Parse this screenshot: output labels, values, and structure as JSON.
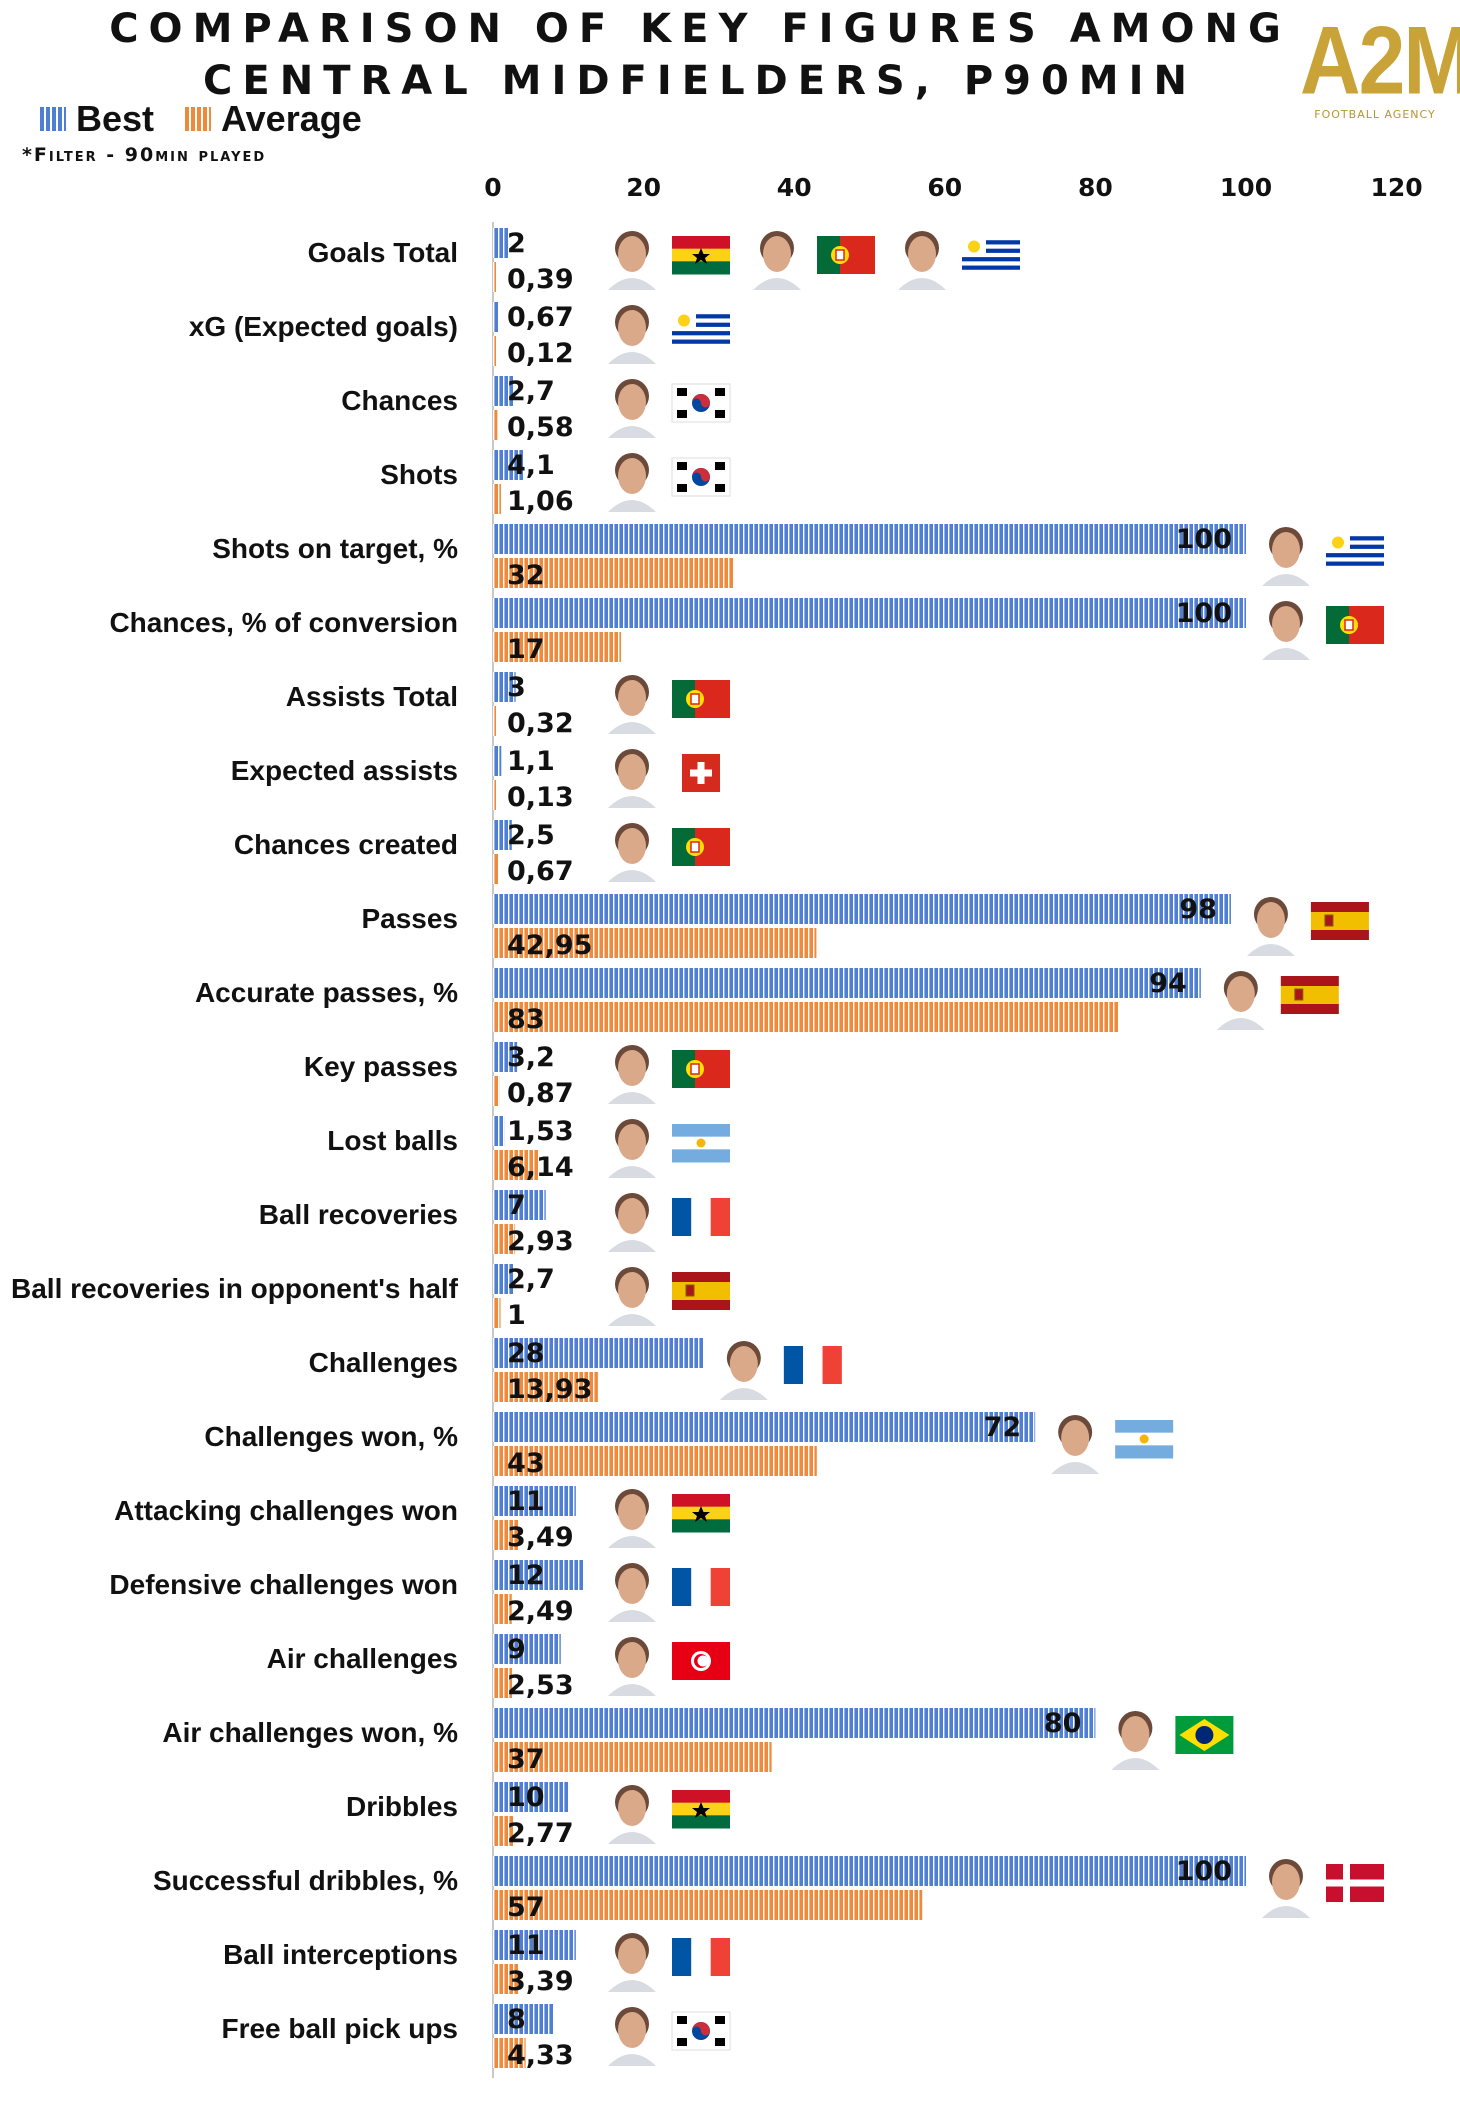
{
  "title": {
    "line1": "COMPARISON OF KEY FIGURES AMONG",
    "line2": "CENTRAL MIDFIELDERS, P90MIN"
  },
  "legend": {
    "best": "Best",
    "average": "Average"
  },
  "filter_note": "*Filter - 90min played",
  "logo": {
    "main": "A2M",
    "sub": "FOOTBALL AGENCY"
  },
  "colors": {
    "best": "#4f7fd4",
    "average": "#ef8a3c",
    "stripe": "#ffffff"
  },
  "chart_data": {
    "type": "bar",
    "orientation": "horizontal",
    "title": "Comparison of key figures among central midfielders, p90min",
    "xlim": [
      0,
      120
    ],
    "xticks": [
      "0",
      "20",
      "40",
      "60",
      "80",
      "100",
      "120"
    ],
    "series": [
      {
        "name": "Best",
        "values": [
          2,
          0.67,
          2.7,
          4.1,
          100,
          100,
          3,
          1.1,
          2.5,
          98,
          94,
          3.2,
          1.53,
          7,
          2.7,
          28,
          72,
          11,
          12,
          9,
          80,
          10,
          100,
          11,
          8
        ]
      },
      {
        "name": "Average",
        "values": [
          0.39,
          0.12,
          0.58,
          1.06,
          32,
          17,
          0.32,
          0.13,
          0.67,
          42.95,
          83,
          0.87,
          6.14,
          2.93,
          1,
          13.93,
          43,
          3.49,
          2.49,
          2.53,
          37,
          2.77,
          57,
          3.39,
          4.33
        ]
      }
    ],
    "rows": [
      {
        "label": "Goals Total",
        "best": "2",
        "avg": "0,39",
        "players": [
          {
            "flag": "ghana-flag"
          },
          {
            "flag": "portugal-flag"
          },
          {
            "flag": "uruguay-flag"
          }
        ]
      },
      {
        "label": "xG (Expected goals)",
        "best": "0,67",
        "avg": "0,12",
        "players": [
          {
            "flag": "uruguay-flag"
          }
        ]
      },
      {
        "label": "Chances",
        "best": "2,7",
        "avg": "0,58",
        "players": [
          {
            "flag": "south-korea-flag"
          }
        ]
      },
      {
        "label": "Shots",
        "best": "4,1",
        "avg": "1,06",
        "players": [
          {
            "flag": "south-korea-flag"
          }
        ]
      },
      {
        "label": "Shots on target, %",
        "best": "100",
        "avg": "32",
        "players": [
          {
            "flag": "uruguay-flag"
          }
        ]
      },
      {
        "label": "Chances, % of conversion",
        "best": "100",
        "avg": "17",
        "players": [
          {
            "flag": "portugal-flag"
          }
        ]
      },
      {
        "label": "Assists Total",
        "best": "3",
        "avg": "0,32",
        "players": [
          {
            "flag": "portugal-flag"
          }
        ]
      },
      {
        "label": "Expected assists",
        "best": "1,1",
        "avg": "0,13",
        "players": [
          {
            "flag": "switzerland-flag"
          }
        ]
      },
      {
        "label": "Chances created",
        "best": "2,5",
        "avg": "0,67",
        "players": [
          {
            "flag": "portugal-flag"
          }
        ]
      },
      {
        "label": "Passes",
        "best": "98",
        "avg": "42,95",
        "players": [
          {
            "flag": "spain-flag"
          }
        ]
      },
      {
        "label": "Accurate passes, %",
        "best": "94",
        "avg": "83",
        "players": [
          {
            "flag": "spain-flag"
          }
        ]
      },
      {
        "label": "Key passes",
        "best": "3,2",
        "avg": "0,87",
        "players": [
          {
            "flag": "portugal-flag"
          }
        ]
      },
      {
        "label": "Lost balls",
        "best": "1,53",
        "avg": "6,14",
        "players": [
          {
            "flag": "argentina-flag"
          }
        ]
      },
      {
        "label": "Ball recoveries",
        "best": "7",
        "avg": "2,93",
        "players": [
          {
            "flag": "france-flag"
          }
        ]
      },
      {
        "label": "Ball recoveries in opponent's half",
        "best": "2,7",
        "avg": "1",
        "players": [
          {
            "flag": "spain-flag"
          }
        ]
      },
      {
        "label": "Challenges",
        "best": "28",
        "avg": "13,93",
        "players": [
          {
            "flag": "france-flag"
          }
        ]
      },
      {
        "label": "Challenges won, %",
        "best": "72",
        "avg": "43",
        "players": [
          {
            "flag": "argentina-flag"
          }
        ]
      },
      {
        "label": "Attacking challenges won",
        "best": "11",
        "avg": "3,49",
        "players": [
          {
            "flag": "ghana-flag"
          }
        ]
      },
      {
        "label": "Defensive challenges won",
        "best": "12",
        "avg": "2,49",
        "players": [
          {
            "flag": "france-flag"
          }
        ]
      },
      {
        "label": "Air challenges",
        "best": "9",
        "avg": "2,53",
        "players": [
          {
            "flag": "tunisia-flag"
          }
        ]
      },
      {
        "label": "Air challenges won, %",
        "best": "80",
        "avg": "37",
        "players": [
          {
            "flag": "brazil-flag"
          }
        ]
      },
      {
        "label": "Dribbles",
        "best": "10",
        "avg": "2,77",
        "players": [
          {
            "flag": "ghana-flag"
          }
        ]
      },
      {
        "label": "Successful dribbles, %",
        "best": "100",
        "avg": "57",
        "players": [
          {
            "flag": "denmark-flag"
          }
        ]
      },
      {
        "label": "Ball interceptions",
        "best": "11",
        "avg": "3,39",
        "players": [
          {
            "flag": "france-flag"
          }
        ]
      },
      {
        "label": "Free ball pick ups",
        "best": "8",
        "avg": "4,33",
        "players": [
          {
            "flag": "south-korea-flag"
          }
        ]
      }
    ]
  }
}
